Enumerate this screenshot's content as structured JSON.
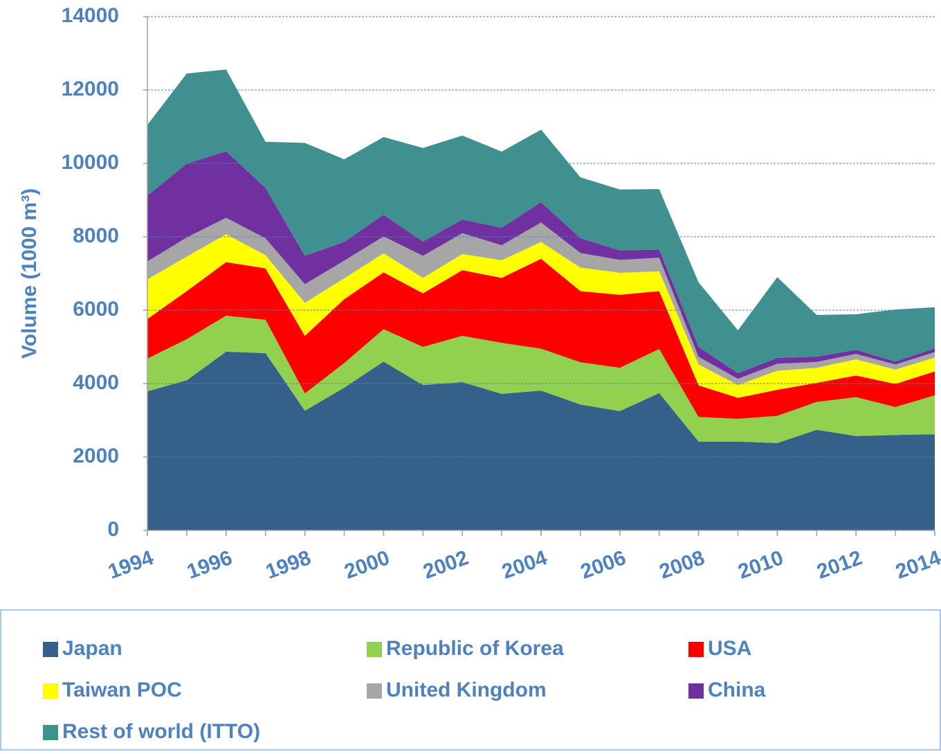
{
  "chart_data": {
    "type": "stacked_area",
    "y_label": "Volume (1000 m³)",
    "x": [
      1994,
      1995,
      1996,
      1997,
      1998,
      1999,
      2000,
      2001,
      2002,
      2003,
      2004,
      2005,
      2006,
      2007,
      2008,
      2009,
      2010,
      2011,
      2012,
      2013,
      2014
    ],
    "xlim": [
      1994,
      2014
    ],
    "xticks": [
      1994,
      1996,
      1998,
      2000,
      2002,
      2004,
      2006,
      2008,
      2010,
      2012,
      2014
    ],
    "ylim": [
      0,
      14000
    ],
    "yticks": [
      0,
      2000,
      4000,
      6000,
      8000,
      10000,
      12000,
      14000
    ],
    "grid": true,
    "legend": "bottom",
    "series": [
      {
        "name": "Japan",
        "color": "#35608a",
        "values": [
          3790,
          4090,
          4870,
          4830,
          3260,
          3890,
          4600,
          3960,
          4040,
          3720,
          3810,
          3430,
          3250,
          3740,
          2420,
          2420,
          2380,
          2740,
          2570,
          2600,
          2620
        ]
      },
      {
        "name": "Republic of Korea",
        "color": "#92d050",
        "values": [
          890,
          1120,
          980,
          910,
          470,
          670,
          880,
          1040,
          1260,
          1390,
          1140,
          1150,
          1180,
          1200,
          670,
          620,
          740,
          760,
          1060,
          760,
          1060
        ]
      },
      {
        "name": "USA",
        "color": "#ff0000",
        "values": [
          1080,
          1310,
          1460,
          1400,
          1570,
          1740,
          1550,
          1460,
          1790,
          1770,
          2450,
          1940,
          1990,
          1580,
          860,
          570,
          710,
          520,
          590,
          630,
          650
        ]
      },
      {
        "name": "Taiwan POC",
        "color": "#ffff00",
        "values": [
          1080,
          940,
          760,
          360,
          900,
          570,
          520,
          420,
          440,
          480,
          460,
          640,
          600,
          540,
          570,
          350,
          520,
          410,
          440,
          390,
          380
        ]
      },
      {
        "name": "United Kingdom",
        "color": "#a6a6a6",
        "values": [
          490,
          520,
          450,
          460,
          510,
          480,
          460,
          600,
          570,
          410,
          530,
          400,
          350,
          370,
          210,
          170,
          190,
          160,
          150,
          140,
          150
        ]
      },
      {
        "name": "China",
        "color": "#7030a0",
        "values": [
          1790,
          2010,
          1810,
          1370,
          770,
          510,
          590,
          390,
          370,
          480,
          550,
          400,
          260,
          220,
          270,
          150,
          160,
          140,
          110,
          80,
          100
        ]
      },
      {
        "name": "Rest of world (ITTO)",
        "color": "#409090",
        "values": [
          1930,
          2460,
          2230,
          1260,
          3080,
          2250,
          2120,
          2550,
          2290,
          2070,
          1980,
          1660,
          1660,
          1650,
          1760,
          1170,
          2200,
          1140,
          970,
          1420,
          1120
        ]
      }
    ]
  }
}
